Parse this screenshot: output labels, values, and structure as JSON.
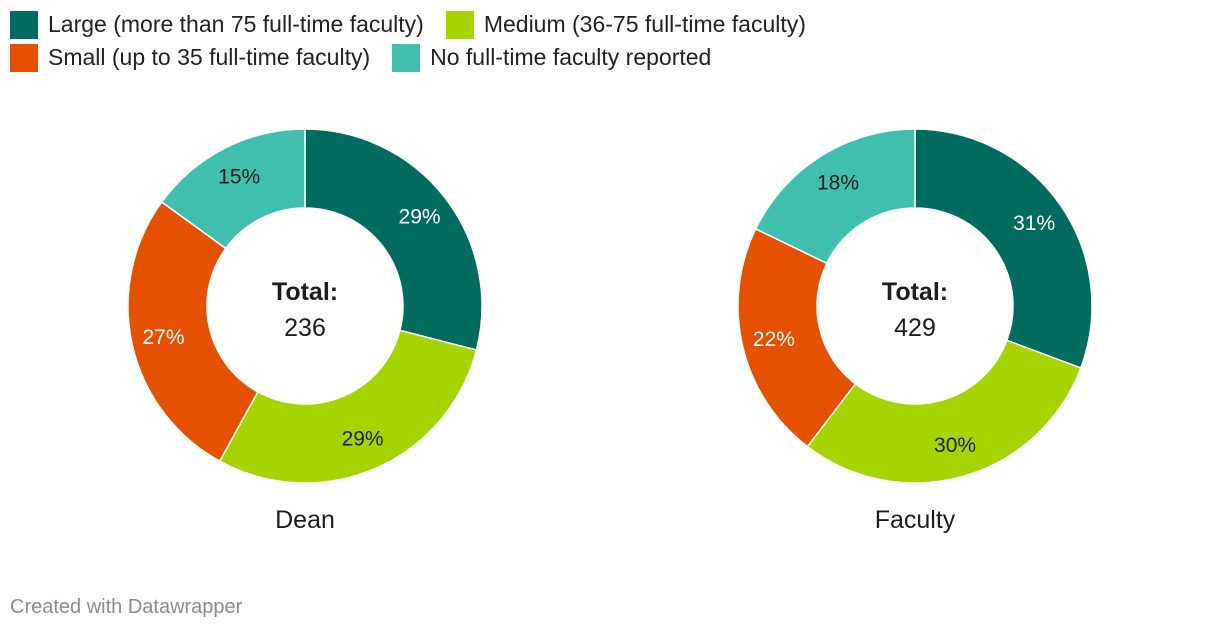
{
  "legend": {
    "items": [
      {
        "label": "Large (more than 75 full-time faculty)",
        "color": "#006c5f"
      },
      {
        "label": "Medium (36-75 full-time faculty)",
        "color": "#a6d400"
      },
      {
        "label": "Small (up to 35 full-time faculty)",
        "color": "#e65100"
      },
      {
        "label": "No full-time faculty reported",
        "color": "#40bfae"
      }
    ]
  },
  "chart_data": [
    {
      "type": "pie",
      "title": "Dean",
      "center_label": "Total:",
      "total": "236",
      "categories": [
        "Large (more than 75 full-time faculty)",
        "Medium (36-75 full-time faculty)",
        "Small (up to 35 full-time faculty)",
        "No full-time faculty reported"
      ],
      "values": [
        29,
        29,
        27,
        15
      ],
      "labels": [
        "29%",
        "29%",
        "27%",
        "15%"
      ],
      "colors": [
        "#006c5f",
        "#a6d400",
        "#e65100",
        "#40bfae"
      ]
    },
    {
      "type": "pie",
      "title": "Faculty",
      "center_label": "Total:",
      "total": "429",
      "categories": [
        "Large (more than 75 full-time faculty)",
        "Medium (36-75 full-time faculty)",
        "Small (up to 35 full-time faculty)",
        "No full-time faculty reported"
      ],
      "values": [
        31,
        30,
        22,
        18
      ],
      "labels": [
        "31%",
        "30%",
        "22%",
        "18%"
      ],
      "colors": [
        "#006c5f",
        "#a6d400",
        "#e65100",
        "#40bfae"
      ]
    }
  ],
  "footer": {
    "credit": "Created with Datawrapper"
  }
}
